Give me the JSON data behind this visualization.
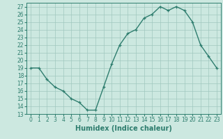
{
  "x": [
    0,
    1,
    2,
    3,
    4,
    5,
    6,
    7,
    8,
    9,
    10,
    11,
    12,
    13,
    14,
    15,
    16,
    17,
    18,
    19,
    20,
    21,
    22,
    23
  ],
  "y": [
    19,
    19,
    17.5,
    16.5,
    16,
    15,
    14.5,
    13.5,
    13.5,
    16.5,
    19.5,
    22,
    23.5,
    24,
    25.5,
    26,
    27,
    26.5,
    27,
    26.5,
    25,
    22,
    20.5,
    19
  ],
  "line_color": "#2e7d6e",
  "marker": "+",
  "marker_color": "#2e7d6e",
  "bg_color": "#cce8e0",
  "grid_color": "#a0c8be",
  "xlabel": "Humidex (Indice chaleur)",
  "ylabel": "",
  "xlim": [
    -0.5,
    23.5
  ],
  "ylim": [
    13,
    27.5
  ],
  "yticks": [
    13,
    14,
    15,
    16,
    17,
    18,
    19,
    20,
    21,
    22,
    23,
    24,
    25,
    26,
    27
  ],
  "xticks": [
    0,
    1,
    2,
    3,
    4,
    5,
    6,
    7,
    8,
    9,
    10,
    11,
    12,
    13,
    14,
    15,
    16,
    17,
    18,
    19,
    20,
    21,
    22,
    23
  ],
  "tick_fontsize": 5.5,
  "label_fontsize": 7,
  "line_width": 1.0,
  "marker_size": 3.5,
  "marker_edge_width": 0.9
}
